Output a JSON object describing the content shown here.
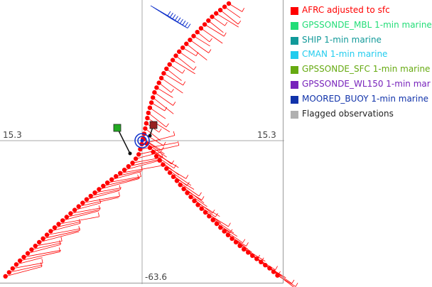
{
  "chart_data": {
    "type": "scatter",
    "axes": {
      "x_left_label": "15.3",
      "x_right_label": "15.3",
      "y_bottom_label": "-63.6"
    },
    "legend": [
      {
        "label": "AFRC adjusted to sfc",
        "color": "#ff0000"
      },
      {
        "label": "GPSSONDE_MBL 1-min marine",
        "color": "#22dd77"
      },
      {
        "label": "SHIP 1-min marine",
        "color": "#119999"
      },
      {
        "label": "CMAN 1-min marine",
        "color": "#22ccee"
      },
      {
        "label": "GPSSONDE_SFC 1-min marine",
        "color": "#66aa11"
      },
      {
        "label": "GPSSONDE_WL150 1-min mar",
        "color": "#7722bb"
      },
      {
        "label": "MOORED_BUOY 1-min marine",
        "color": "#1133aa"
      },
      {
        "label": "Flagged observations",
        "color": "#b0b0b0"
      }
    ],
    "tracks": [
      {
        "name": "AFRC adjusted to sfc",
        "color": "#ff0000",
        "path": [
          [
            322,
            5
          ],
          [
            300,
            22
          ],
          [
            275,
            48
          ],
          [
            250,
            75
          ],
          [
            232,
            100
          ],
          [
            218,
            128
          ],
          [
            209,
            158
          ],
          [
            203,
            188
          ],
          [
            199,
            205
          ],
          [
            195,
            218
          ],
          [
            188,
            228
          ],
          [
            173,
            241
          ],
          [
            150,
            258
          ],
          [
            125,
            278
          ],
          [
            100,
            300
          ],
          [
            75,
            322
          ],
          [
            50,
            346
          ],
          [
            25,
            370
          ],
          [
            5,
            392
          ]
        ]
      },
      {
        "name": "AFRC adjusted to sfc",
        "color": "#ff0000",
        "path": [
          [
            202,
            196
          ],
          [
            214,
            212
          ],
          [
            228,
            230
          ],
          [
            245,
            250
          ],
          [
            262,
            270
          ],
          [
            280,
            290
          ],
          [
            300,
            310
          ],
          [
            320,
            330
          ],
          [
            342,
            350
          ],
          [
            362,
            365
          ],
          [
            380,
            378
          ],
          [
            393,
            390
          ]
        ]
      }
    ],
    "markers": [
      {
        "type": "square",
        "color": "#22aa22",
        "position_data": [
          165,
          180
        ]
      },
      {
        "type": "square",
        "color": "#992222",
        "position_data": [
          216,
          176
        ]
      },
      {
        "type": "circle",
        "color": "#1133cc",
        "position_data": [
          200,
          198
        ]
      }
    ],
    "moored_buoy_cluster": {
      "color": "#1133cc",
      "center_data": [
        228,
        22
      ]
    }
  }
}
